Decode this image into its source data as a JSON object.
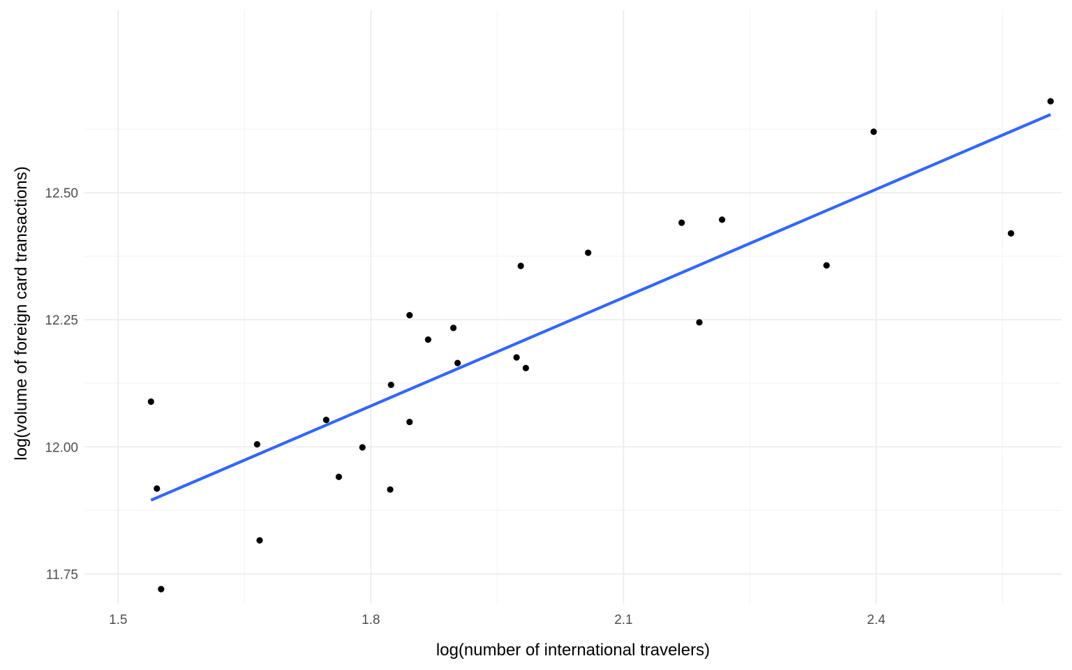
{
  "chart_data": {
    "type": "scatter",
    "title": "",
    "xlabel": "log(number of international travelers)",
    "ylabel": "log(volume of foreign card transactions)",
    "xlim": [
      1.46,
      2.62
    ],
    "ylim": [
      11.69,
      12.86
    ],
    "x_ticks": [
      "1.5",
      "1.8",
      "2.1",
      "2.4"
    ],
    "x_tick_values": [
      1.5,
      1.8,
      2.1,
      2.4
    ],
    "y_ticks": [
      "11.75",
      "12.00",
      "12.25",
      "12.50"
    ],
    "y_tick_values": [
      11.75,
      12.0,
      12.25,
      12.5
    ],
    "grid": true,
    "legend": "none",
    "points": [
      {
        "x": 1.539,
        "y": 12.089
      },
      {
        "x": 1.546,
        "y": 11.918
      },
      {
        "x": 1.551,
        "y": 11.72
      },
      {
        "x": 1.665,
        "y": 12.005
      },
      {
        "x": 1.668,
        "y": 11.816
      },
      {
        "x": 1.747,
        "y": 12.053
      },
      {
        "x": 1.762,
        "y": 11.941
      },
      {
        "x": 1.79,
        "y": 11.999
      },
      {
        "x": 1.823,
        "y": 11.916
      },
      {
        "x": 1.824,
        "y": 12.122
      },
      {
        "x": 1.846,
        "y": 12.259
      },
      {
        "x": 1.846,
        "y": 12.049
      },
      {
        "x": 1.868,
        "y": 12.211
      },
      {
        "x": 1.898,
        "y": 12.234
      },
      {
        "x": 1.903,
        "y": 12.165
      },
      {
        "x": 1.973,
        "y": 12.176
      },
      {
        "x": 1.978,
        "y": 12.356
      },
      {
        "x": 1.984,
        "y": 12.155
      },
      {
        "x": 2.058,
        "y": 12.382
      },
      {
        "x": 2.169,
        "y": 12.441
      },
      {
        "x": 2.19,
        "y": 12.245
      },
      {
        "x": 2.217,
        "y": 12.447
      },
      {
        "x": 2.341,
        "y": 12.357
      },
      {
        "x": 2.397,
        "y": 12.62
      },
      {
        "x": 2.56,
        "y": 12.42
      },
      {
        "x": 2.607,
        "y": 12.68
      }
    ],
    "fit_line": {
      "color": "#3366FF",
      "x": [
        1.539,
        2.607
      ],
      "y": [
        11.895,
        12.654
      ]
    },
    "point_color": "#000000"
  }
}
